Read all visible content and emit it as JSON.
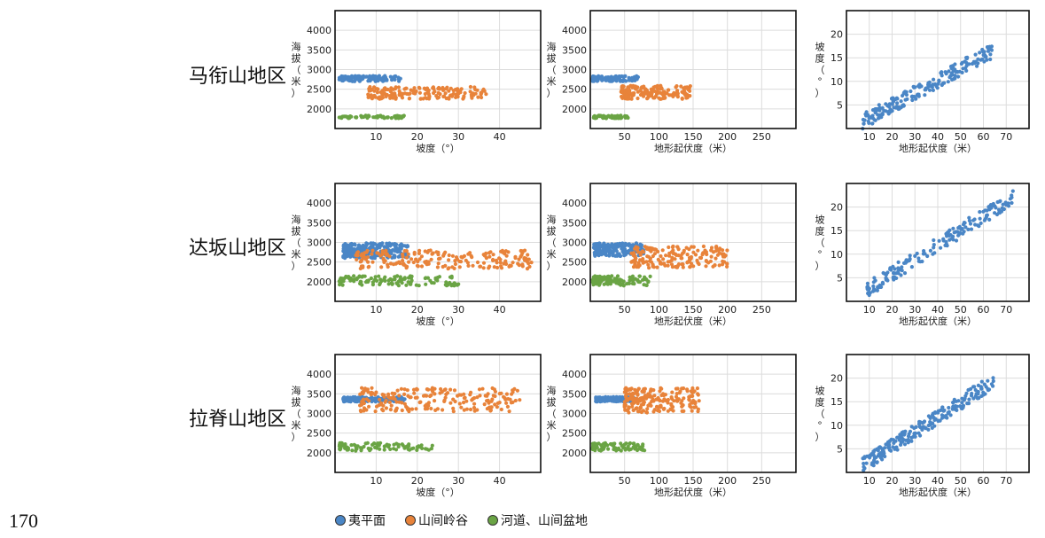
{
  "page_number": "170",
  "colors": {
    "plain": "#4a86c6",
    "valley": "#e8833a",
    "basin": "#6aa444",
    "grid": "#dcdcdc"
  },
  "legend": [
    {
      "label": "夷平面",
      "color": "#4a86c6"
    },
    {
      "label": "山间岭谷",
      "color": "#e8833a"
    },
    {
      "label": "河道、山间盆地",
      "color": "#6aa444"
    }
  ],
  "regions": [
    "马衔山地区",
    "达坂山地区",
    "拉脊山地区"
  ],
  "chart_data": [
    {
      "id": "mx-slope",
      "type": "scatter",
      "region": "马衔山地区",
      "xlabel": "坡度（°）",
      "ylabel": "海拔（米）",
      "xlim": [
        0,
        50
      ],
      "ylim": [
        1500,
        4500
      ],
      "xticks": [
        10,
        20,
        30,
        40
      ],
      "yticks": [
        2000,
        2500,
        3000,
        3500,
        4000
      ],
      "grid": true,
      "series": [
        {
          "name": "夷平面",
          "color": "#4a86c6",
          "x_range": [
            1,
            16
          ],
          "y_range": [
            2700,
            2840
          ],
          "n": 120
        },
        {
          "name": "山间岭谷",
          "color": "#e8833a",
          "x_range": [
            8,
            37
          ],
          "y_range": [
            2250,
            2560
          ],
          "n": 170
        },
        {
          "name": "河道、山间盆地",
          "color": "#6aa444",
          "x_range": [
            1,
            17
          ],
          "y_range": [
            1760,
            1830
          ],
          "n": 60
        }
      ]
    },
    {
      "id": "mx-relief",
      "type": "scatter",
      "region": "马衔山地区",
      "xlabel": "地形起伏度（米）",
      "ylabel": "海拔（米）",
      "xlim": [
        0,
        300
      ],
      "ylim": [
        1500,
        4500
      ],
      "xticks": [
        50,
        100,
        150,
        200,
        250
      ],
      "yticks": [
        2000,
        2500,
        3000,
        3500,
        4000
      ],
      "grid": true,
      "series": [
        {
          "name": "夷平面",
          "color": "#4a86c6",
          "x_range": [
            3,
            70
          ],
          "y_range": [
            2700,
            2840
          ],
          "n": 120
        },
        {
          "name": "山间岭谷",
          "color": "#e8833a",
          "x_range": [
            45,
            150
          ],
          "y_range": [
            2250,
            2600
          ],
          "n": 170
        },
        {
          "name": "河道、山间盆地",
          "color": "#6aa444",
          "x_range": [
            3,
            55
          ],
          "y_range": [
            1760,
            1830
          ],
          "n": 60
        }
      ]
    },
    {
      "id": "mx-corr",
      "type": "scatter",
      "region": "马衔山地区",
      "xlabel": "地形起伏度（米）",
      "ylabel": "坡度（°）",
      "xlim": [
        0,
        80
      ],
      "ylim": [
        0,
        25
      ],
      "xticks": [
        10,
        20,
        30,
        40,
        50,
        60,
        70
      ],
      "yticks": [
        5,
        10,
        15,
        20
      ],
      "grid": true,
      "series": [
        {
          "name": "夷平面",
          "color": "#4a86c6",
          "x_range": [
            7,
            64
          ],
          "y_range": [
            1.5,
            16.5
          ],
          "n": 200
        }
      ]
    },
    {
      "id": "db-slope",
      "type": "scatter",
      "region": "达坂山地区",
      "xlabel": "坡度（°）",
      "ylabel": "海拔（米）",
      "xlim": [
        0,
        50
      ],
      "ylim": [
        1500,
        4500
      ],
      "xticks": [
        10,
        20,
        30,
        40
      ],
      "yticks": [
        2000,
        2500,
        3000,
        3500,
        4000
      ],
      "grid": true,
      "series": [
        {
          "name": "夷平面",
          "color": "#4a86c6",
          "x_range": [
            2,
            18
          ],
          "y_range": [
            2600,
            2980
          ],
          "n": 220
        },
        {
          "name": "山间岭谷",
          "color": "#e8833a",
          "x_range": [
            5,
            48
          ],
          "y_range": [
            2330,
            2800
          ],
          "n": 200
        },
        {
          "name": "河道、山间盆地",
          "color": "#6aa444",
          "x_range": [
            1,
            30
          ],
          "y_range": [
            1900,
            2150
          ],
          "n": 120
        }
      ]
    },
    {
      "id": "db-relief",
      "type": "scatter",
      "region": "达坂山地区",
      "xlabel": "地形起伏度（米）",
      "ylabel": "海拔（米）",
      "xlim": [
        0,
        300
      ],
      "ylim": [
        1500,
        4500
      ],
      "xticks": [
        50,
        100,
        150,
        200,
        250
      ],
      "yticks": [
        2000,
        2500,
        3000,
        3500,
        4000
      ],
      "grid": true,
      "series": [
        {
          "name": "夷平面",
          "color": "#4a86c6",
          "x_range": [
            5,
            80
          ],
          "y_range": [
            2650,
            2980
          ],
          "n": 180
        },
        {
          "name": "山间岭谷",
          "color": "#e8833a",
          "x_range": [
            60,
            200
          ],
          "y_range": [
            2350,
            2900
          ],
          "n": 190
        },
        {
          "name": "河道、山间盆地",
          "color": "#6aa444",
          "x_range": [
            3,
            90
          ],
          "y_range": [
            1900,
            2150
          ],
          "n": 110
        }
      ]
    },
    {
      "id": "db-corr",
      "type": "scatter",
      "region": "达坂山地区",
      "xlabel": "地形起伏度（米）",
      "ylabel": "坡度（°）",
      "xlim": [
        0,
        80
      ],
      "ylim": [
        0,
        25
      ],
      "xticks": [
        10,
        20,
        30,
        40,
        50,
        60,
        70
      ],
      "yticks": [
        5,
        10,
        15,
        20
      ],
      "grid": true,
      "series": [
        {
          "name": "夷平面",
          "color": "#4a86c6",
          "x_range": [
            9,
            73
          ],
          "y_range": [
            2.5,
            22
          ],
          "n": 180
        }
      ]
    },
    {
      "id": "lj-slope",
      "type": "scatter",
      "region": "拉脊山地区",
      "xlabel": "坡度（°）",
      "ylabel": "海拔（米）",
      "xlim": [
        0,
        50
      ],
      "ylim": [
        1500,
        4500
      ],
      "xticks": [
        10,
        20,
        30,
        40
      ],
      "yticks": [
        2000,
        2500,
        3000,
        3500,
        4000
      ],
      "grid": true,
      "series": [
        {
          "name": "夷平面",
          "color": "#4a86c6",
          "x_range": [
            2,
            17
          ],
          "y_range": [
            3300,
            3420
          ],
          "n": 170
        },
        {
          "name": "山间岭谷",
          "color": "#e8833a",
          "x_range": [
            6,
            45
          ],
          "y_range": [
            3050,
            3650
          ],
          "n": 210
        },
        {
          "name": "河道、山间盆地",
          "color": "#6aa444",
          "x_range": [
            1,
            24
          ],
          "y_range": [
            2050,
            2250
          ],
          "n": 90
        }
      ]
    },
    {
      "id": "lj-relief",
      "type": "scatter",
      "region": "拉脊山地区",
      "xlabel": "地形起伏度（米）",
      "ylabel": "海拔（米）",
      "xlim": [
        0,
        300
      ],
      "ylim": [
        1500,
        4500
      ],
      "xticks": [
        50,
        100,
        150,
        200,
        250
      ],
      "yticks": [
        2000,
        2500,
        3000,
        3500,
        4000
      ],
      "grid": true,
      "series": [
        {
          "name": "夷平面",
          "color": "#4a86c6",
          "x_range": [
            8,
            65
          ],
          "y_range": [
            3300,
            3420
          ],
          "n": 150
        },
        {
          "name": "山间岭谷",
          "color": "#e8833a",
          "x_range": [
            50,
            160
          ],
          "y_range": [
            3020,
            3650
          ],
          "n": 200
        },
        {
          "name": "河道、山间盆地",
          "color": "#6aa444",
          "x_range": [
            3,
            80
          ],
          "y_range": [
            2050,
            2250
          ],
          "n": 80
        }
      ]
    },
    {
      "id": "lj-corr",
      "type": "scatter",
      "region": "拉脊山地区",
      "xlabel": "地形起伏度（米）",
      "ylabel": "坡度（°）",
      "xlim": [
        0,
        80
      ],
      "ylim": [
        0,
        25
      ],
      "xticks": [
        10,
        20,
        30,
        40,
        50,
        60,
        70
      ],
      "yticks": [
        5,
        10,
        15,
        20
      ],
      "grid": true,
      "series": [
        {
          "name": "夷平面",
          "color": "#4a86c6",
          "x_range": [
            7,
            65
          ],
          "y_range": [
            1.5,
            19.5
          ],
          "n": 220
        }
      ]
    }
  ]
}
